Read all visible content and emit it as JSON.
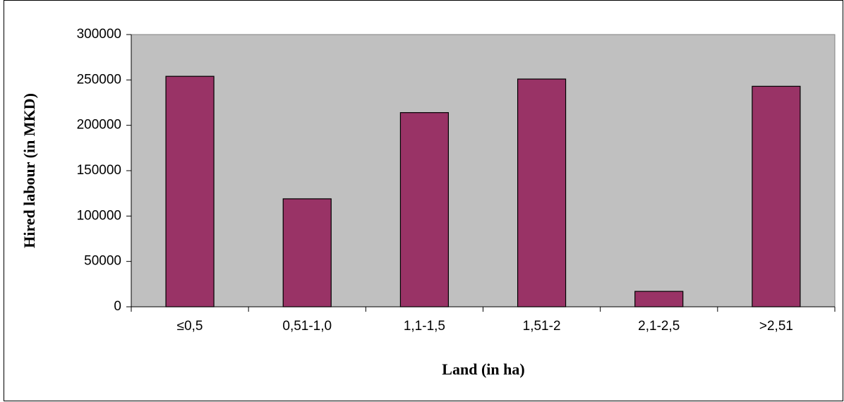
{
  "chart_data": {
    "type": "bar",
    "x_label": "Land (in ha)",
    "y_label": "Hired labour (in MKD)",
    "categories": [
      "≤0,5",
      "0,51-1,0",
      "1,1-1,5",
      "1,51-2",
      "2,1-2,5",
      ">2,51"
    ],
    "values": [
      254000,
      119000,
      214000,
      251000,
      17000,
      243000
    ],
    "color": "#993366",
    "background": "#c0c0c0",
    "ylim": [
      0,
      300000
    ],
    "yticks": [
      0,
      50000,
      100000,
      150000,
      200000,
      250000,
      300000
    ],
    "grid": false
  }
}
